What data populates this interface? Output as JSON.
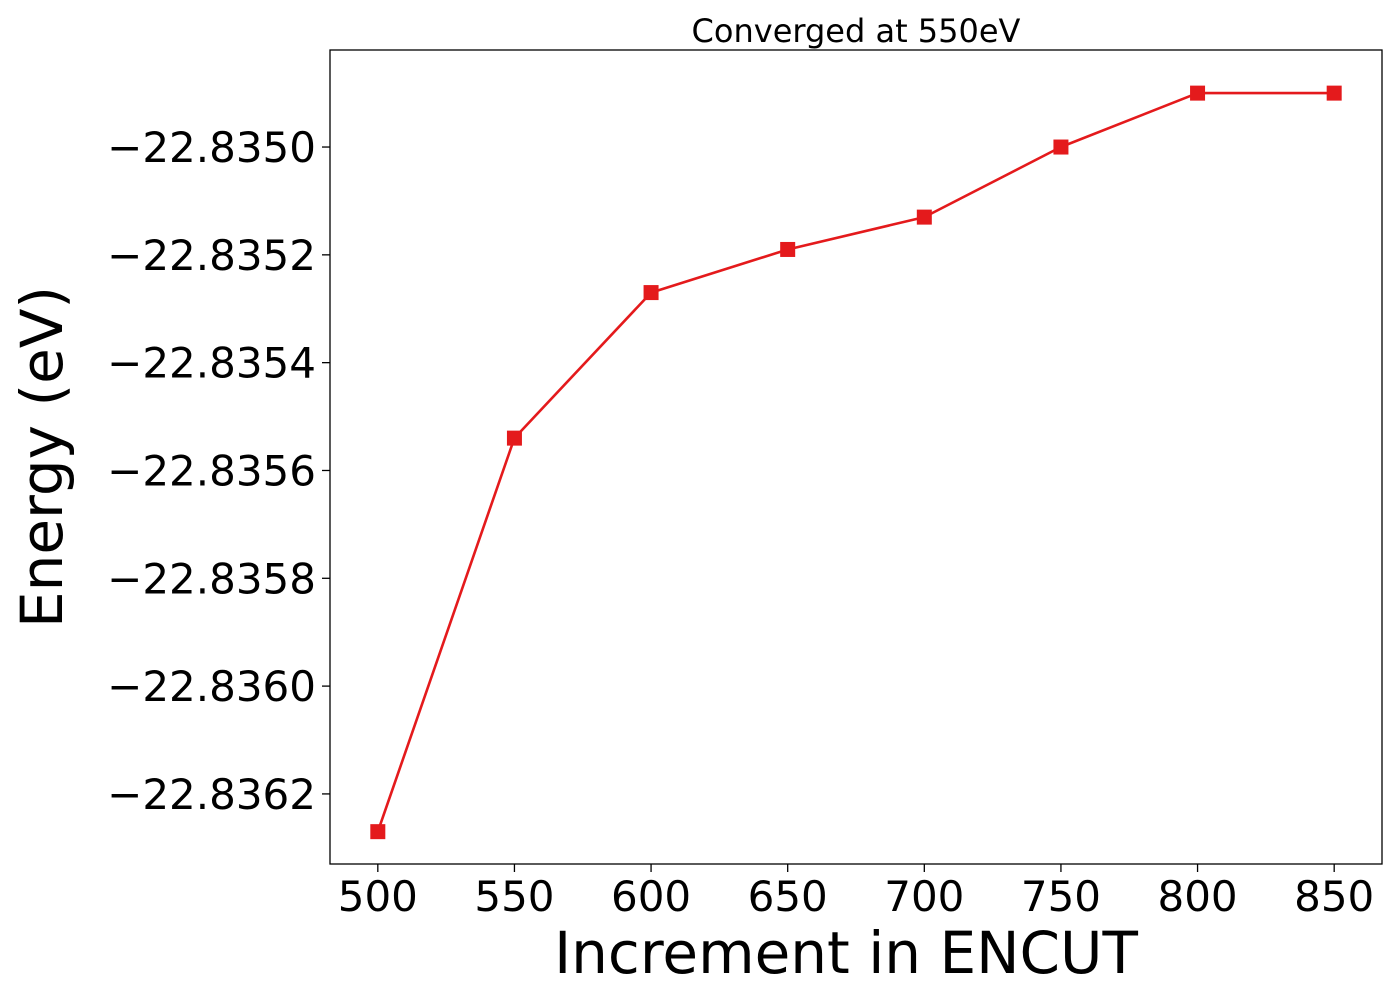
{
  "chart_data": {
    "type": "line",
    "title": "Converged at 550eV",
    "xlabel": "Increment in ENCUT",
    "ylabel": "Energy (eV)",
    "x": [
      500,
      550,
      600,
      650,
      700,
      750,
      800,
      850
    ],
    "series": [
      {
        "values": [
          -22.83627,
          -22.83554,
          -22.83527,
          -22.83519,
          -22.83513,
          -22.835,
          -22.8349,
          -22.8349
        ],
        "color": "#e41a1c",
        "marker": "square"
      }
    ],
    "xticks": [
      500,
      550,
      600,
      650,
      700,
      750,
      800,
      850
    ],
    "xtick_labels": [
      "500",
      "550",
      "600",
      "650",
      "700",
      "750",
      "800",
      "850"
    ],
    "yticks": [
      -22.8362,
      -22.836,
      -22.8358,
      -22.8356,
      -22.8354,
      -22.8352,
      -22.835
    ],
    "ytick_labels": [
      "−22.8362",
      "−22.8360",
      "−22.8358",
      "−22.8356",
      "−22.8354",
      "−22.8352",
      "−22.8350"
    ],
    "xlim": [
      482.5,
      867.5
    ],
    "ylim": [
      -22.83633,
      -22.83482
    ],
    "grid": false,
    "legend": "none"
  }
}
